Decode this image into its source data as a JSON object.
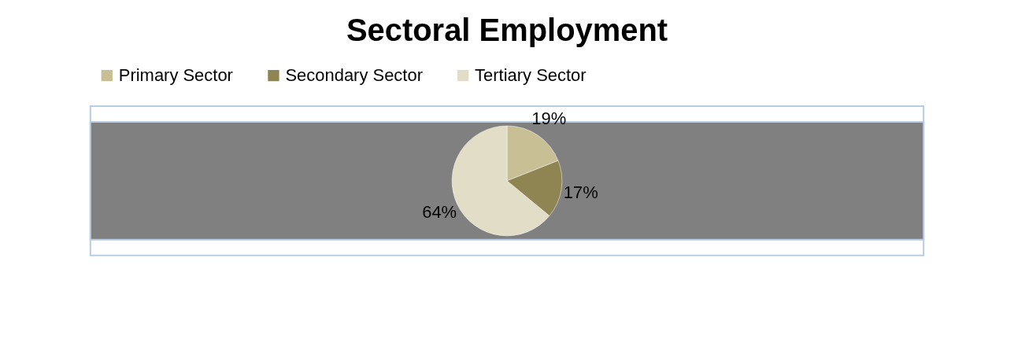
{
  "chart_data": {
    "type": "pie",
    "title": "Sectoral Employment",
    "categories": [
      "Primary Sector",
      "Secondary Sector",
      "Tertiary Sector"
    ],
    "values": [
      19,
      17,
      64
    ],
    "value_labels": [
      "19%",
      "17%",
      "64%"
    ],
    "colors": [
      "#c8bf94",
      "#8f8552",
      "#e1ddc6"
    ],
    "legend": "top"
  }
}
